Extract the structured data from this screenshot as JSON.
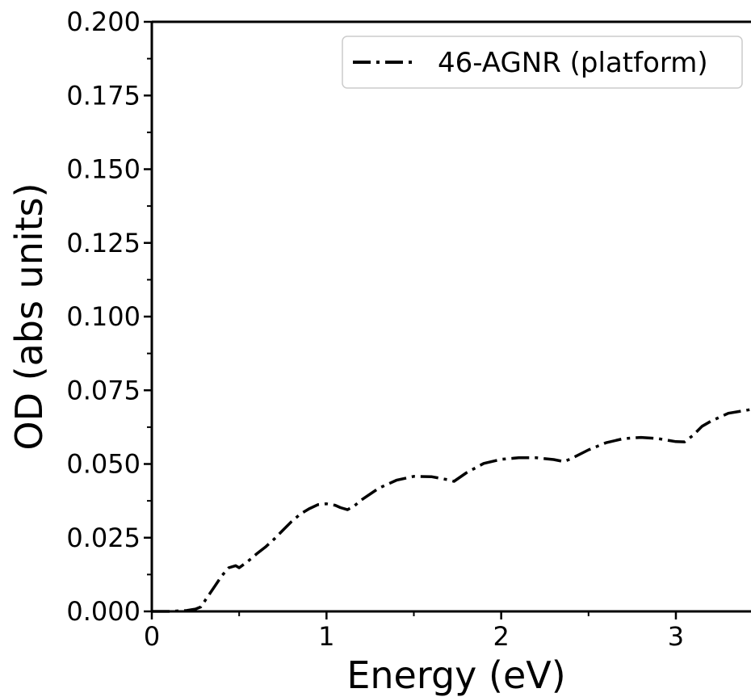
{
  "chart_data": {
    "type": "line",
    "title": "",
    "xlabel": "Energy (eV)",
    "ylabel": "OD (abs units)",
    "xlim": [
      0,
      3.43
    ],
    "ylim": [
      0,
      0.2
    ],
    "x_ticks": [
      0,
      1,
      2,
      3
    ],
    "x_tick_labels": [
      "0",
      "1",
      "2",
      "3"
    ],
    "x_minor_ticks": [
      0.5,
      1.5,
      2.5
    ],
    "y_ticks": [
      0,
      0.025,
      0.05,
      0.075,
      0.1,
      0.125,
      0.15,
      0.175,
      0.2
    ],
    "y_tick_labels": [
      "0.000",
      "0.025",
      "0.050",
      "0.075",
      "0.100",
      "0.125",
      "0.150",
      "0.175",
      "0.200"
    ],
    "y_minor_ticks": [
      0.0125,
      0.0375,
      0.0625,
      0.0875,
      0.1125,
      0.1375,
      0.1625,
      0.1875
    ],
    "grid": false,
    "legend_position": "top-right",
    "series": [
      {
        "name": "46-AGNR (platform)",
        "color": "#000000",
        "line_style": "dash-dot",
        "x": [
          0,
          0.1,
          0.2,
          0.25,
          0.28,
          0.32,
          0.36,
          0.4,
          0.44,
          0.48,
          0.5,
          0.55,
          0.6,
          0.65,
          0.7,
          0.75,
          0.8,
          0.85,
          0.9,
          0.95,
          1.0,
          1.05,
          1.08,
          1.12,
          1.16,
          1.2,
          1.3,
          1.4,
          1.5,
          1.6,
          1.7,
          1.73,
          1.8,
          1.9,
          2.0,
          2.1,
          2.2,
          2.3,
          2.36,
          2.4,
          2.5,
          2.6,
          2.7,
          2.8,
          2.9,
          3.0,
          3.05,
          3.1,
          3.15,
          3.2,
          3.3,
          3.43
        ],
        "y": [
          0,
          0,
          0.0003,
          0.0008,
          0.0015,
          0.005,
          0.0085,
          0.012,
          0.0148,
          0.0155,
          0.0148,
          0.017,
          0.0195,
          0.0218,
          0.0245,
          0.0275,
          0.0305,
          0.033,
          0.0348,
          0.0362,
          0.0365,
          0.036,
          0.0352,
          0.0345,
          0.0358,
          0.0378,
          0.0418,
          0.0445,
          0.0458,
          0.0457,
          0.0446,
          0.0441,
          0.047,
          0.0502,
          0.0516,
          0.0521,
          0.0521,
          0.0515,
          0.0508,
          0.0518,
          0.0548,
          0.0572,
          0.0586,
          0.059,
          0.0586,
          0.0576,
          0.0575,
          0.0598,
          0.0628,
          0.0645,
          0.0672,
          0.0685
        ]
      }
    ]
  }
}
